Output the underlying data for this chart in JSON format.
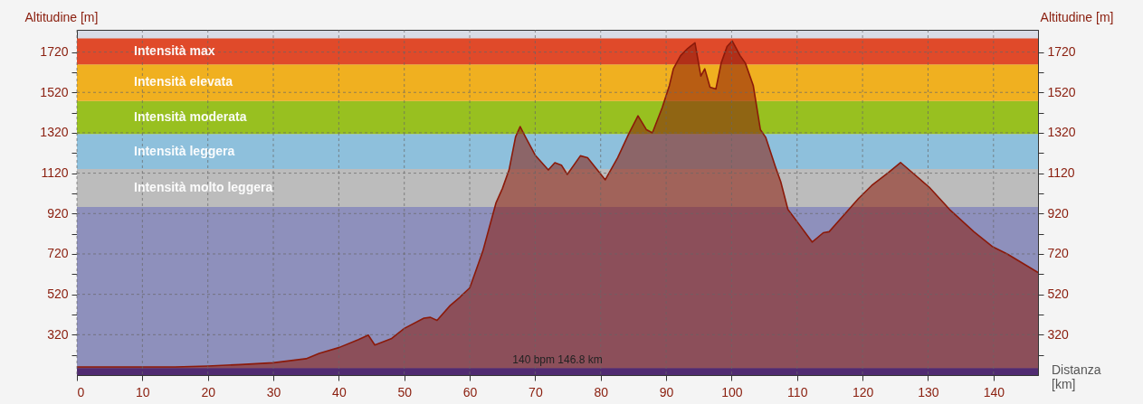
{
  "chart_data": {
    "type": "area",
    "ylabel": "Altitudine [m]",
    "y2label": "Altitudine [m]",
    "xlabel": "Distanza [km]",
    "x": [
      0,
      15,
      20,
      25,
      30,
      35,
      37,
      40,
      43,
      44.5,
      45.5,
      48,
      50,
      53,
      54,
      55,
      57,
      58.5,
      60,
      61,
      62,
      63,
      64,
      65,
      66,
      67,
      67.7,
      68.5,
      70,
      72,
      73,
      74,
      74.9,
      76.9,
      78,
      80.7,
      82.6,
      84.3,
      85.7,
      87,
      87.9,
      89.4,
      90.5,
      91.1,
      92.2,
      93.3,
      94.4,
      95.3,
      95.9,
      96.7,
      97.6,
      98.4,
      99.3,
      100.1,
      101.3,
      102.1,
      103.3,
      104.4,
      105.2,
      106.7,
      107.5,
      108.6,
      110.3,
      112.3,
      114,
      114.9,
      119.4,
      121.4,
      124,
      125.8,
      130.2,
      133.3,
      137,
      139.8,
      142.1,
      146.8
    ],
    "series": [
      {
        "color": "#8b1a0a",
        "values": [
          160,
          160,
          165,
          172,
          181,
          201,
          227,
          256,
          296,
          318,
          269,
          300,
          351,
          402,
          406,
          391,
          464,
          506,
          552,
          643,
          734,
          853,
          972,
          1045,
          1136,
          1300,
          1351,
          1300,
          1209,
          1136,
          1172,
          1160,
          1114,
          1206,
          1197,
          1087,
          1197,
          1316,
          1404,
          1335,
          1320,
          1445,
          1555,
          1637,
          1702,
          1738,
          1766,
          1601,
          1637,
          1546,
          1537,
          1665,
          1747,
          1775,
          1702,
          1665,
          1555,
          1335,
          1298,
          1151,
          1078,
          940,
          867,
          779,
          825,
          830,
          995,
          1059,
          1124,
          1173,
          1050,
          940,
          830,
          757,
          720,
          628
        ]
      }
    ],
    "xlim": [
      0,
      146.8
    ],
    "xticks": [
      0,
      10,
      20,
      30,
      40,
      50,
      60,
      70,
      80,
      90,
      100,
      110,
      120,
      130,
      140
    ],
    "ylim": [
      120,
      1830
    ],
    "yticks": [
      {
        "value": 220,
        "label": null
      },
      320,
      {
        "value": 420,
        "label": null
      },
      520,
      {
        "value": 620,
        "label": null
      },
      720,
      {
        "value": 820,
        "label": null
      },
      920,
      {
        "value": 1020,
        "label": null
      },
      1120,
      {
        "value": 1220,
        "label": null
      },
      1320,
      {
        "value": 1420,
        "label": null
      },
      1520,
      {
        "value": 1620,
        "label": null
      },
      1720
    ],
    "y2lim": [
      120,
      1830
    ],
    "y2ticks": [
      {
        "value": 220,
        "label": null
      },
      320,
      {
        "value": 420,
        "label": null
      },
      520,
      {
        "value": 620,
        "label": null
      },
      720,
      {
        "value": 820,
        "label": null
      },
      920,
      {
        "value": 1020,
        "label": null
      },
      1120,
      {
        "value": 1220,
        "label": null
      },
      1320,
      {
        "value": 1420,
        "label": null
      },
      1520,
      {
        "value": 1620,
        "label": null
      },
      1720
    ],
    "grid": true,
    "bands": [
      {
        "axis": "y",
        "from": 155,
        "to": 953,
        "color": "#8e90bc"
      },
      {
        "axis": "y",
        "from": 953,
        "to": 1141,
        "color": "#bcbcbc",
        "label": "Intensità molto leggera"
      },
      {
        "axis": "y",
        "from": 1141,
        "to": 1314,
        "color": "#8ec0dc",
        "label": "Intensità leggera"
      },
      {
        "axis": "y",
        "from": 1314,
        "to": 1478,
        "color": "#98c020",
        "label": "Intensità moderata"
      },
      {
        "axis": "y",
        "from": 1478,
        "to": 1659,
        "color": "#f0b020",
        "label": "Intensità elevata"
      },
      {
        "axis": "y",
        "from": 1659,
        "to": 1787,
        "color": "#e04a2a",
        "label": "Intensità max"
      },
      {
        "axis": "y",
        "from": 120,
        "to": 155,
        "color": "#0a40f0",
        "label": "140 bpm 146.8 km"
      }
    ]
  }
}
